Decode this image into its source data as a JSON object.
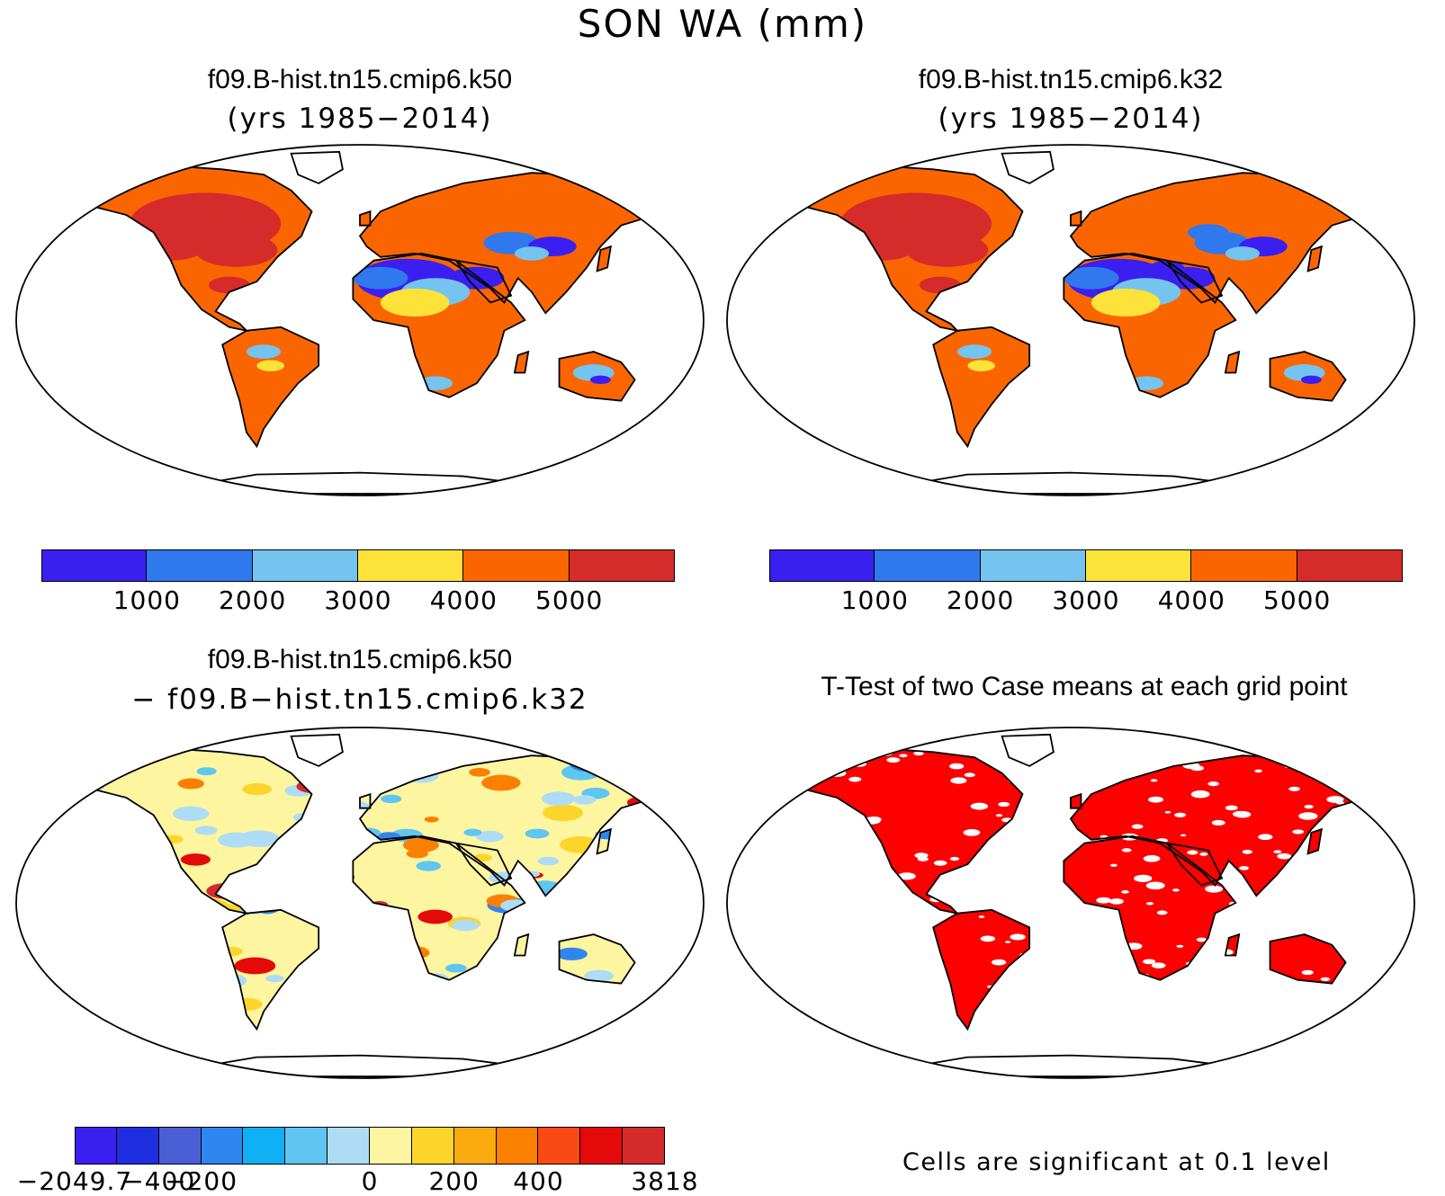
{
  "figure": {
    "title": "SON WA (mm)"
  },
  "panels": {
    "top_left": {
      "title": "f09.B-hist.tn15.cmip6.k50",
      "subtitle": "(yrs 1985−2014)"
    },
    "top_right": {
      "title": "f09.B-hist.tn15.cmip6.k32",
      "subtitle": "(yrs 1985−2014)"
    },
    "bottom_left": {
      "title": "f09.B-hist.tn15.cmip6.k50",
      "subtitle": "− f09.B−hist.tn15.cmip6.k32"
    },
    "bottom_right": {
      "title": "T-Test of two Case means at each grid point",
      "note": "Cells are significant at 0.1 level"
    }
  },
  "colorbars": {
    "case": {
      "colors": [
        "#3a1ff0",
        "#2f78ee",
        "#74c4ef",
        "#fde23a",
        "#fb6500",
        "#d62b2b"
      ],
      "labels": [
        "1000",
        "2000",
        "3000",
        "4000",
        "5000"
      ]
    },
    "difference": {
      "colors": [
        "#3a1ff0",
        "#1f2ee0",
        "#4a5fd6",
        "#2f86ee",
        "#10b0f4",
        "#5ec6f0",
        "#afdcf5",
        "#fef5a0",
        "#fcd52a",
        "#fbab10",
        "#fb8000",
        "#fa4a14",
        "#e40a0a",
        "#d42a2a"
      ],
      "labels": [
        "−2049.7",
        "−400",
        "−200",
        "0",
        "200",
        "400",
        "3818"
      ]
    }
  },
  "map_colors": {
    "ocean": "#ffffff",
    "coast": "#000000",
    "significant": "#ff0000"
  }
}
